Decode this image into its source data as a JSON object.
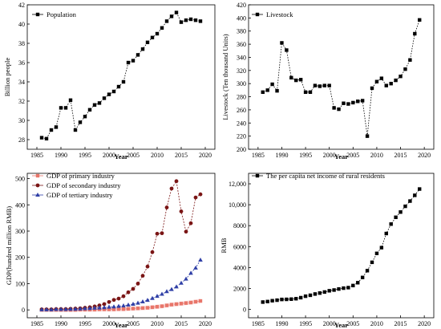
{
  "chart_data": [
    {
      "type": "line",
      "title": "",
      "xlabel": "Year",
      "ylabel": "Billion people",
      "xlim": [
        1983,
        2022
      ],
      "ylim": [
        27,
        42
      ],
      "x_ticks": [
        1985,
        1990,
        1995,
        2000,
        2005,
        2010,
        2015,
        2020
      ],
      "y_ticks": [
        28,
        30,
        32,
        34,
        36,
        38,
        40,
        42
      ],
      "legend_position": "top-left",
      "series": [
        {
          "name": "Population",
          "color": "#000000",
          "marker": "square",
          "x": [
            1986,
            1987,
            1988,
            1989,
            1990,
            1991,
            1992,
            1993,
            1994,
            1995,
            1996,
            1997,
            1998,
            1999,
            2000,
            2001,
            2002,
            2003,
            2004,
            2005,
            2006,
            2007,
            2008,
            2009,
            2010,
            2011,
            2012,
            2013,
            2014,
            2015,
            2016,
            2017,
            2018,
            2019
          ],
          "y": [
            28.2,
            28.1,
            29.0,
            29.3,
            31.3,
            31.3,
            32.1,
            29.0,
            29.8,
            30.4,
            31.1,
            31.6,
            31.8,
            32.3,
            32.7,
            33.0,
            33.5,
            34.0,
            36.0,
            36.2,
            36.8,
            37.4,
            38.1,
            38.6,
            39.0,
            39.6,
            40.3,
            40.8,
            41.2,
            40.2,
            40.4,
            40.5,
            40.4,
            40.3
          ]
        }
      ]
    },
    {
      "type": "line",
      "title": "",
      "xlabel": "Year",
      "ylabel": "Livestock (Ten thousand Units)",
      "xlim": [
        1983,
        2022
      ],
      "ylim": [
        200,
        420
      ],
      "x_ticks": [
        1985,
        1990,
        1995,
        2000,
        2005,
        2010,
        2015,
        2020
      ],
      "y_ticks": [
        200,
        220,
        240,
        260,
        280,
        300,
        320,
        340,
        360,
        380,
        400,
        420
      ],
      "legend_position": "top-left",
      "series": [
        {
          "name": "Livestock",
          "color": "#000000",
          "marker": "square",
          "x": [
            1986,
            1987,
            1988,
            1989,
            1990,
            1991,
            1992,
            1993,
            1994,
            1995,
            1996,
            1997,
            1998,
            1999,
            2000,
            2001,
            2002,
            2003,
            2004,
            2005,
            2006,
            2007,
            2008,
            2009,
            2010,
            2011,
            2012,
            2013,
            2014,
            2015,
            2016,
            2017,
            2018,
            2019
          ],
          "y": [
            287,
            290,
            299,
            289,
            362,
            351,
            309,
            305,
            306,
            287,
            287,
            297,
            296,
            297,
            297,
            263,
            261,
            270,
            269,
            271,
            273,
            274,
            220,
            293,
            303,
            308,
            297,
            300,
            305,
            311,
            322,
            336,
            376,
            397
          ]
        }
      ]
    },
    {
      "type": "line",
      "title": "",
      "xlabel": "Year",
      "ylabel": "GDP(hundred million RMB)",
      "xlim": [
        1983,
        2022
      ],
      "ylim": [
        -30,
        520
      ],
      "x_ticks": [
        1985,
        1990,
        1995,
        2000,
        2005,
        2010,
        2015,
        2020
      ],
      "y_ticks": [
        0,
        100,
        200,
        300,
        400,
        500
      ],
      "legend_position": "top-left",
      "series": [
        {
          "name": "GDP of primary industry",
          "color": "#e8766a",
          "marker": "square",
          "x": [
            1986,
            1987,
            1988,
            1989,
            1990,
            1991,
            1992,
            1993,
            1994,
            1995,
            1996,
            1997,
            1998,
            1999,
            2000,
            2001,
            2002,
            2003,
            2004,
            2005,
            2006,
            2007,
            2008,
            2009,
            2010,
            2011,
            2012,
            2013,
            2014,
            2015,
            2016,
            2017,
            2018,
            2019
          ],
          "y": [
            0,
            0,
            0,
            0,
            0,
            0,
            0,
            0,
            1,
            1,
            1,
            1,
            2,
            2,
            2,
            2,
            3,
            3,
            4,
            5,
            6,
            7,
            8,
            10,
            12,
            14,
            17,
            20,
            22,
            24,
            26,
            28,
            31,
            34
          ]
        },
        {
          "name": "GDP of secondary industry",
          "color": "#7a1515",
          "marker": "circle",
          "x": [
            1986,
            1987,
            1988,
            1989,
            1990,
            1991,
            1992,
            1993,
            1994,
            1995,
            1996,
            1997,
            1998,
            1999,
            2000,
            2001,
            2002,
            2003,
            2004,
            2005,
            2006,
            2007,
            2008,
            2009,
            2010,
            2011,
            2012,
            2013,
            2014,
            2015,
            2016,
            2017,
            2018,
            2019
          ],
          "y": [
            2,
            2,
            2,
            3,
            3,
            3,
            4,
            5,
            6,
            8,
            10,
            13,
            17,
            22,
            30,
            38,
            43,
            52,
            67,
            80,
            100,
            130,
            165,
            220,
            290,
            292,
            390,
            462,
            490,
            375,
            298,
            330,
            428,
            440
          ]
        },
        {
          "name": "GDP of tertiary industry",
          "color": "#2f3fa6",
          "marker": "triangle",
          "x": [
            1986,
            1987,
            1988,
            1989,
            1990,
            1991,
            1992,
            1993,
            1994,
            1995,
            1996,
            1997,
            1998,
            1999,
            2000,
            2001,
            2002,
            2003,
            2004,
            2005,
            2006,
            2007,
            2008,
            2009,
            2010,
            2011,
            2012,
            2013,
            2014,
            2015,
            2016,
            2017,
            2018,
            2019
          ],
          "y": [
            1,
            1,
            1,
            2,
            2,
            2,
            3,
            3,
            4,
            5,
            6,
            7,
            8,
            9,
            11,
            12,
            14,
            16,
            19,
            22,
            26,
            31,
            37,
            44,
            52,
            60,
            70,
            78,
            88,
            102,
            118,
            140,
            160,
            190
          ]
        }
      ]
    },
    {
      "type": "line",
      "title": "",
      "xlabel": "Year",
      "ylabel": "RMB",
      "xlim": [
        1983,
        2022
      ],
      "ylim": [
        -800,
        13000
      ],
      "x_ticks": [
        1985,
        1990,
        1995,
        2000,
        2005,
        2010,
        2015,
        2020
      ],
      "y_ticks": [
        0,
        2000,
        4000,
        6000,
        8000,
        10000,
        12000
      ],
      "y_tick_labels": [
        "0",
        "2000",
        "4000",
        "6000",
        "8000",
        "10,000",
        "12,000"
      ],
      "legend_position": "top-left",
      "series": [
        {
          "name": "The per capita net income of rural residents",
          "color": "#000000",
          "marker": "square",
          "x": [
            1986,
            1987,
            1988,
            1989,
            1990,
            1991,
            1992,
            1993,
            1994,
            1995,
            1996,
            1997,
            1998,
            1999,
            2000,
            2001,
            2002,
            2003,
            2004,
            2005,
            2006,
            2007,
            2008,
            2009,
            2010,
            2011,
            2012,
            2013,
            2014,
            2015,
            2016,
            2017,
            2018,
            2019
          ],
          "y": [
            700,
            750,
            830,
            880,
            950,
            960,
            980,
            1020,
            1120,
            1260,
            1350,
            1470,
            1560,
            1660,
            1780,
            1850,
            1950,
            2030,
            2080,
            2280,
            2550,
            3050,
            3700,
            4500,
            5350,
            5900,
            7250,
            8150,
            8800,
            9300,
            9850,
            10350,
            10900,
            11500
          ]
        }
      ]
    }
  ]
}
